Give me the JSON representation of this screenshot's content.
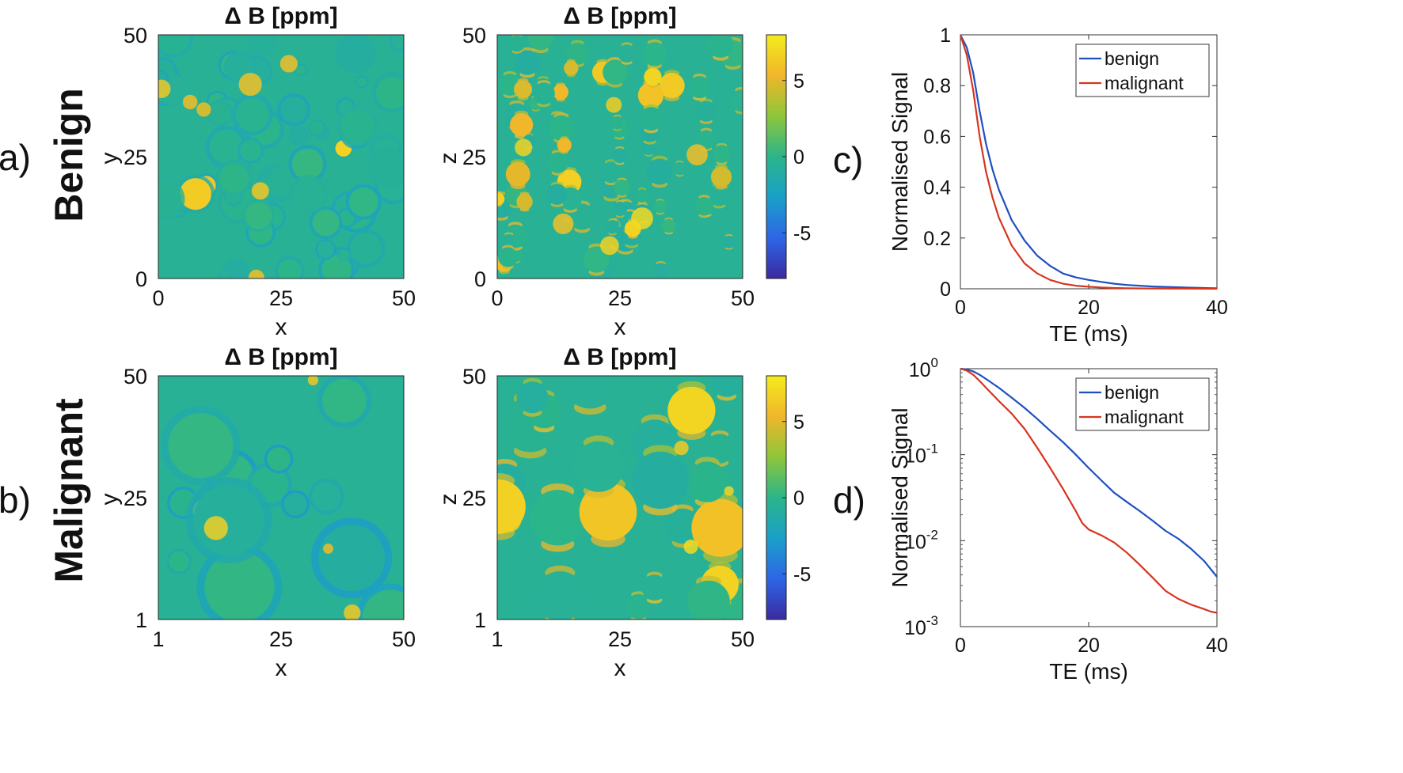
{
  "labels": {
    "row_a": "a)",
    "row_b": "b)",
    "row_a_name": "Benign",
    "row_b_name": "Malignant",
    "panel_c": "c)",
    "panel_d": "d)"
  },
  "colors": {
    "benign": "#1f4fbf",
    "malignant": "#d8341f",
    "cmap": [
      "#3b2aa0",
      "#2d66e6",
      "#1aa0c8",
      "#2bb58a",
      "#8ec63a",
      "#f0b62a",
      "#f4ec1d"
    ]
  },
  "chart_data": [
    {
      "id": "a-xy",
      "type": "heatmap",
      "title": "Δ B [ppm]",
      "xlabel": "x",
      "ylabel": "y",
      "xticks": [
        "0",
        "25",
        "50"
      ],
      "yticks": [
        "0",
        "25",
        "50"
      ],
      "xlim": [
        0,
        50
      ],
      "ylim": [
        0,
        50
      ],
      "clim": [
        -8,
        8
      ],
      "scenario": "benign"
    },
    {
      "id": "a-xz",
      "type": "heatmap",
      "title": "Δ B [ppm]",
      "xlabel": "x",
      "ylabel": "z",
      "xticks": [
        "0",
        "25",
        "50"
      ],
      "yticks": [
        "0",
        "25",
        "50"
      ],
      "xlim": [
        0,
        50
      ],
      "ylim": [
        0,
        50
      ],
      "clim": [
        -8,
        8
      ],
      "colorbar_ticks": [
        "5",
        "0",
        "-5"
      ],
      "scenario": "benign"
    },
    {
      "id": "b-xy",
      "type": "heatmap",
      "title": "Δ B [ppm]",
      "xlabel": "x",
      "ylabel": "y",
      "xticks": [
        "1",
        "25",
        "50"
      ],
      "yticks": [
        "1",
        "25",
        "50"
      ],
      "xlim": [
        1,
        50
      ],
      "ylim": [
        1,
        50
      ],
      "clim": [
        -8,
        8
      ],
      "scenario": "malignant"
    },
    {
      "id": "b-xz",
      "type": "heatmap",
      "title": "Δ B [ppm]",
      "xlabel": "x",
      "ylabel": "z",
      "xticks": [
        "1",
        "25",
        "50"
      ],
      "yticks": [
        "1",
        "25",
        "50"
      ],
      "xlim": [
        1,
        50
      ],
      "ylim": [
        1,
        50
      ],
      "clim": [
        -8,
        8
      ],
      "colorbar_ticks": [
        "5",
        "0",
        "-5"
      ],
      "scenario": "malignant"
    },
    {
      "id": "c",
      "type": "line",
      "scale": "linear",
      "xlabel": "TE (ms)",
      "ylabel": "Normalised Signal",
      "xlim": [
        0,
        40
      ],
      "ylim": [
        0,
        1
      ],
      "xticks": [
        0,
        20,
        40
      ],
      "xtick_labels": [
        "0",
        "20",
        "40"
      ],
      "yticks": [
        0,
        0.2,
        0.4,
        0.6,
        0.8,
        1
      ],
      "ytick_labels": [
        "0",
        "0.2",
        "0.4",
        "0.6",
        "0.8",
        "1"
      ],
      "legend": "top-right",
      "series": [
        {
          "name": "benign",
          "x": [
            0,
            1,
            2,
            3,
            4,
            5,
            6,
            8,
            10,
            12,
            14,
            16,
            18,
            20,
            22,
            24,
            26,
            30,
            35,
            40
          ],
          "y": [
            1,
            0.95,
            0.85,
            0.7,
            0.57,
            0.47,
            0.39,
            0.27,
            0.19,
            0.13,
            0.09,
            0.06,
            0.045,
            0.035,
            0.027,
            0.02,
            0.015,
            0.009,
            0.005,
            0.002
          ]
        },
        {
          "name": "malignant",
          "x": [
            0,
            1,
            2,
            3,
            4,
            5,
            6,
            8,
            10,
            12,
            14,
            16,
            18,
            20,
            22,
            24,
            26,
            30,
            35,
            40
          ],
          "y": [
            1,
            0.92,
            0.78,
            0.6,
            0.46,
            0.36,
            0.28,
            0.17,
            0.1,
            0.06,
            0.035,
            0.02,
            0.012,
            0.008,
            0.005,
            0.003,
            0.002,
            0.001,
            0.0005,
            0.0002
          ]
        }
      ]
    },
    {
      "id": "d",
      "type": "line",
      "scale": "log",
      "xlabel": "TE (ms)",
      "ylabel": "Normalised Signal",
      "xlim": [
        0,
        40
      ],
      "ylim": [
        0.001,
        1
      ],
      "xticks": [
        0,
        20,
        40
      ],
      "xtick_labels": [
        "0",
        "20",
        "40"
      ],
      "yticks": [
        1,
        0.1,
        0.01,
        0.001
      ],
      "ytick_base": "10",
      "ytick_exps": [
        "0",
        "-1",
        "-2",
        "-3"
      ],
      "legend": "top-right",
      "series": [
        {
          "name": "benign",
          "x": [
            0,
            1,
            2,
            3,
            4,
            6,
            8,
            10,
            12,
            14,
            16,
            18,
            20,
            22,
            24,
            26,
            28,
            30,
            32,
            34,
            36,
            38,
            40
          ],
          "y": [
            1,
            0.98,
            0.93,
            0.85,
            0.76,
            0.6,
            0.46,
            0.35,
            0.26,
            0.19,
            0.14,
            0.1,
            0.07,
            0.05,
            0.036,
            0.028,
            0.022,
            0.017,
            0.013,
            0.0105,
            0.008,
            0.0058,
            0.0038
          ]
        },
        {
          "name": "malignant",
          "x": [
            0,
            1,
            2,
            3,
            4,
            6,
            8,
            10,
            12,
            14,
            16,
            18,
            19,
            20,
            22,
            24,
            26,
            28,
            30,
            32,
            34,
            36,
            38,
            39,
            40
          ],
          "y": [
            1,
            0.95,
            0.85,
            0.72,
            0.6,
            0.42,
            0.3,
            0.2,
            0.12,
            0.07,
            0.04,
            0.022,
            0.016,
            0.0135,
            0.0115,
            0.0095,
            0.0072,
            0.0052,
            0.0037,
            0.0026,
            0.0021,
            0.0018,
            0.0016,
            0.0015,
            0.00145
          ]
        }
      ]
    }
  ]
}
